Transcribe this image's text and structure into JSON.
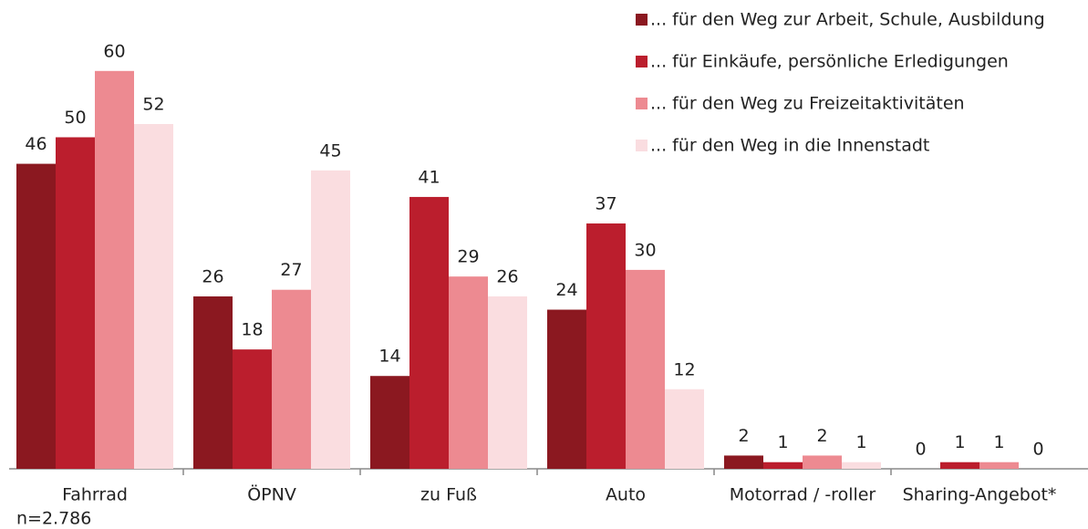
{
  "chart_data": {
    "type": "bar",
    "categories": [
      "Fahrrad",
      "ÖPNV",
      "zu Fuß",
      "Auto",
      "Motorrad / -roller",
      "Sharing-Angebot*"
    ],
    "series": [
      {
        "name": "... für den Weg zur Arbeit, Schule, Ausbildung",
        "color": "#8b1820",
        "values": [
          46,
          26,
          14,
          24,
          2,
          0
        ]
      },
      {
        "name": "... für Einkäufe, persönliche Erledigungen",
        "color": "#bb1e2d",
        "values": [
          50,
          18,
          41,
          37,
          1,
          1
        ]
      },
      {
        "name": "... für den Weg zu Freizeitaktivitäten",
        "color": "#ed8a91",
        "values": [
          60,
          27,
          29,
          30,
          2,
          1
        ]
      },
      {
        "name": "... für den Weg in die Innenstadt",
        "color": "#fadde0",
        "values": [
          52,
          45,
          26,
          12,
          1,
          0
        ]
      }
    ],
    "note": "n=2.786"
  }
}
